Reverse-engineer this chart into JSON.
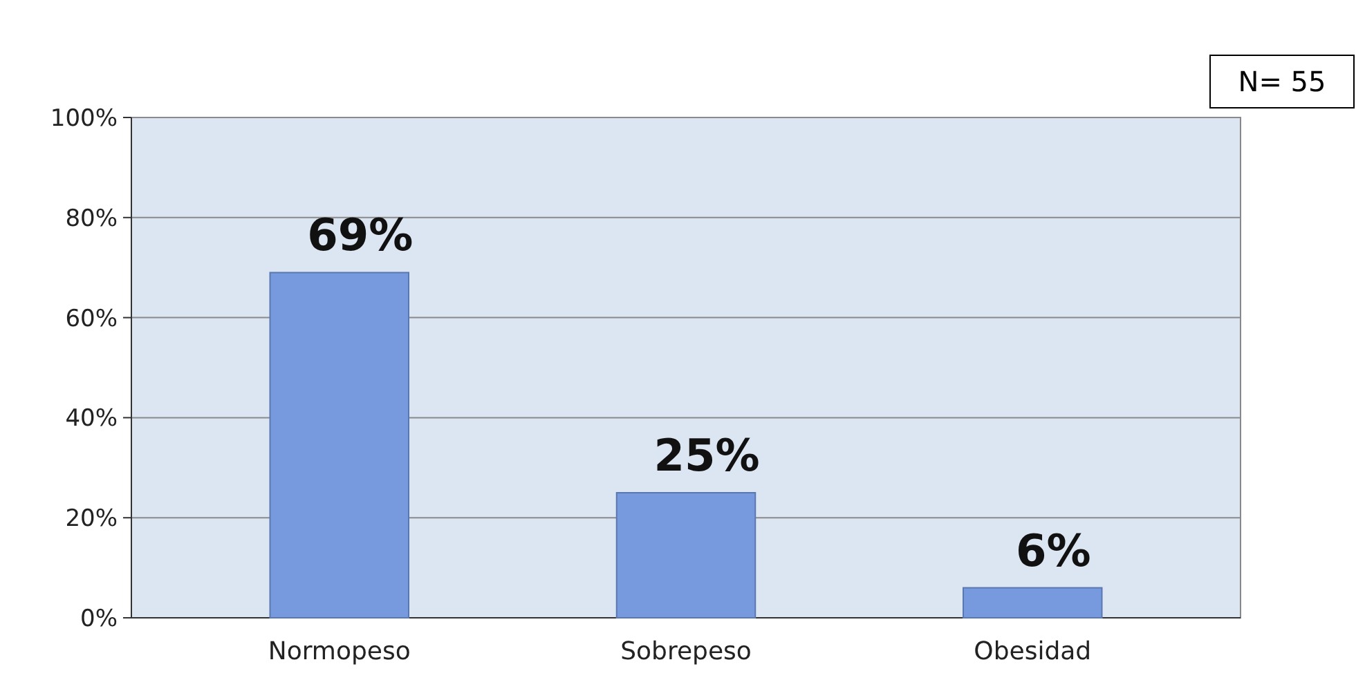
{
  "chart_data": {
    "type": "bar",
    "categories": [
      "Normopeso",
      "Sobrepeso",
      "Obesidad"
    ],
    "values": [
      69,
      25,
      6
    ],
    "color": "#7799dd",
    "value_labels": [
      "69%",
      "25%",
      "6%"
    ],
    "ylim": [
      0,
      100
    ],
    "yticks": [
      {
        "value": 0,
        "label": "0%"
      },
      {
        "value": 20,
        "label": "20%"
      },
      {
        "value": 40,
        "label": "40%"
      },
      {
        "value": 60,
        "label": "60%"
      },
      {
        "value": 80,
        "label": "80%"
      },
      {
        "value": 100,
        "label": "100%"
      }
    ],
    "grid": "y",
    "annotations": [
      "N= 55"
    ]
  }
}
